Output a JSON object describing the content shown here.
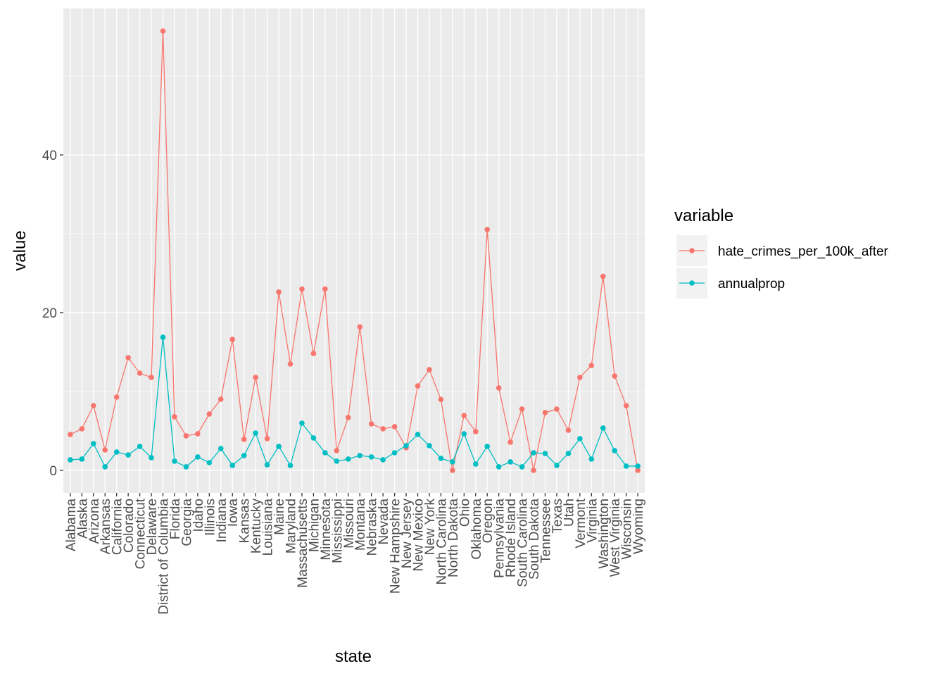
{
  "chart_data": {
    "type": "line",
    "x_label": "state",
    "y_label": "value",
    "legend_title": "variable",
    "categories": [
      "Alabama",
      "Alaska",
      "Arizona",
      "Arkansas",
      "California",
      "Colorado",
      "Connecticut",
      "Delaware",
      "District of Columbia",
      "Florida",
      "Georgia",
      "Idaho",
      "Illinois",
      "Indiana",
      "Iowa",
      "Kansas",
      "Kentucky",
      "Louisiana",
      "Maine",
      "Maryland",
      "Massachusetts",
      "Michigan",
      "Minnesota",
      "Mississippi",
      "Missouri",
      "Montana",
      "Nebraska",
      "Nevada",
      "New Hampshire",
      "New Jersey",
      "New Mexico",
      "New York",
      "North Carolina",
      "North Dakota",
      "Ohio",
      "Oklahoma",
      "Oregon",
      "Pennsylvania",
      "Rhode Island",
      "South Carolina",
      "South Dakota",
      "Tennessee",
      "Texas",
      "Utah",
      "Vermont",
      "Virginia",
      "Washington",
      "West Virginia",
      "Wisconsin",
      "Wyoming"
    ],
    "series": [
      {
        "name": "hate_crimes_per_100k_after",
        "color": "#F8766D",
        "values": [
          4.55,
          5.27,
          8.21,
          2.59,
          9.29,
          14.29,
          12.32,
          11.79,
          55.71,
          6.79,
          4.38,
          4.64,
          7.14,
          9.02,
          16.61,
          3.93,
          11.79,
          4.02,
          22.6,
          13.48,
          23.0,
          14.82,
          23.0,
          2.5,
          6.7,
          18.2,
          5.89,
          5.27,
          5.54,
          2.86,
          10.71,
          12.77,
          8.99,
          0,
          6.96,
          4.91,
          30.54,
          10.45,
          3.57,
          7.77,
          0,
          7.32,
          7.77,
          5.09,
          11.79,
          13.3,
          24.6,
          11.96,
          8.21,
          0
        ]
      },
      {
        "name": "annualprop",
        "color": "#00BFC4",
        "values": [
          1.34,
          1.43,
          3.39,
          0.45,
          2.32,
          1.96,
          3.04,
          1.61,
          16.88,
          1.16,
          0.45,
          1.7,
          0.98,
          2.77,
          0.63,
          1.88,
          4.73,
          0.71,
          3.04,
          0.63,
          5.98,
          4.11,
          2.23,
          1.16,
          1.43,
          1.88,
          1.7,
          1.34,
          2.23,
          3.13,
          4.55,
          3.13,
          1.52,
          1.07,
          4.64,
          0.8,
          3.04,
          0.45,
          1.07,
          0.45,
          2.23,
          2.14,
          0.63,
          2.14,
          4.02,
          1.43,
          5.36,
          2.5,
          0.54,
          0.54
        ]
      }
    ],
    "ylim": [
      -2.86,
      58.57
    ],
    "yticks": [
      0,
      20,
      40
    ],
    "minor_yticks": [
      10,
      30,
      50
    ],
    "grid": true
  }
}
